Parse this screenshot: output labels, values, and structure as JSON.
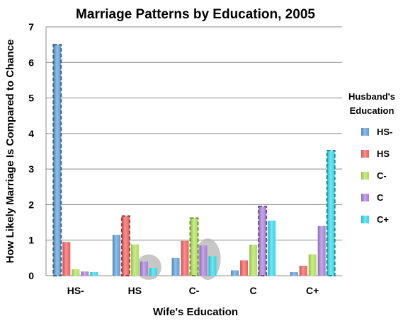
{
  "chart_data": {
    "type": "bar",
    "title": "Marriage Patterns by Education, 2005",
    "xlabel": "Wife's Education",
    "ylabel": "How Likely Marriage Is Compared to Chance",
    "ylim": [
      0,
      7
    ],
    "yticks": [
      0,
      1,
      2,
      3,
      4,
      5,
      6,
      7
    ],
    "grid": true,
    "legend": {
      "title": "Husband's Education",
      "position": "right"
    },
    "categories": [
      "HS-",
      "HS",
      "C-",
      "C",
      "C+"
    ],
    "series": [
      {
        "name": "HS-",
        "color": "#5b9bd5",
        "values": [
          6.5,
          1.15,
          0.5,
          0.15,
          0.1
        ]
      },
      {
        "name": "HS",
        "color": "#f05a5a",
        "values": [
          0.95,
          1.68,
          0.98,
          0.43,
          0.28
        ]
      },
      {
        "name": "C-",
        "color": "#aede55",
        "values": [
          0.18,
          0.88,
          1.62,
          0.87,
          0.6
        ]
      },
      {
        "name": "C",
        "color": "#a57cd6",
        "values": [
          0.12,
          0.4,
          0.85,
          1.95,
          1.4
        ]
      },
      {
        "name": "C+",
        "color": "#2fd6e8",
        "values": [
          0.1,
          0.22,
          0.55,
          1.55,
          3.52
        ]
      }
    ],
    "highlighted_diagonal": [
      {
        "category": "HS-",
        "series": "HS-"
      },
      {
        "category": "HS",
        "series": "HS"
      },
      {
        "category": "C-",
        "series": "C-"
      },
      {
        "category": "C",
        "series": "C"
      },
      {
        "category": "C+",
        "series": "C+"
      }
    ],
    "circled_groups": [
      {
        "category": "HS",
        "series": [
          "C",
          "C+"
        ]
      },
      {
        "category": "C-",
        "series": [
          "C",
          "C+"
        ]
      }
    ]
  }
}
